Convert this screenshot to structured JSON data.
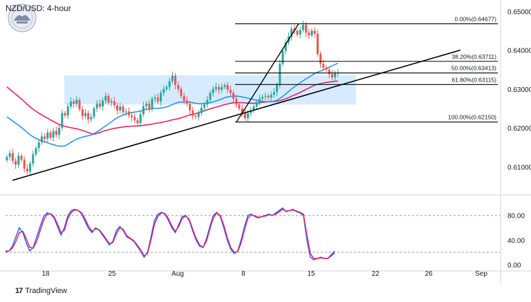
{
  "header": {
    "title": "NZD/USD: 4-hour"
  },
  "logo": {
    "name": "seal-logo-icon"
  },
  "footer": {
    "brand_icon": "17",
    "brand_name": "TradingView"
  },
  "colors": {
    "bull": "#26a69a",
    "bear": "#ef5350",
    "ma_slow": "#e91e63",
    "ma_fast": "#2196f3",
    "stoch_k": "#2962ff",
    "stoch_d": "#e91e63",
    "zone": "#bbdefb",
    "line": "#000000"
  },
  "chart_data": [
    {
      "type": "candlestick",
      "title": "NZD/USD: 4-hour",
      "ylim": [
        0.604,
        0.652
      ],
      "x_ticks": [
        "18",
        "25",
        "Aug",
        "8",
        "15",
        "22",
        "26",
        "Sep"
      ],
      "y_ticks": [
        "0.65000",
        "0.64000",
        "0.63000",
        "0.62000",
        "0.61000"
      ],
      "close_prices": [
        0.6125,
        0.6135,
        0.6115,
        0.6105,
        0.6128,
        0.6118,
        0.6095,
        0.6088,
        0.6108,
        0.6132,
        0.6148,
        0.6163,
        0.6178,
        0.6172,
        0.6188,
        0.6175,
        0.6192,
        0.6182,
        0.62,
        0.6238,
        0.6232,
        0.6255,
        0.6268,
        0.6262,
        0.6272,
        0.6248,
        0.623,
        0.6238,
        0.6222,
        0.6228,
        0.625,
        0.6262,
        0.6255,
        0.627,
        0.6282,
        0.6265,
        0.6268,
        0.6258,
        0.6245,
        0.6255,
        0.624,
        0.6242,
        0.6232,
        0.6228,
        0.622,
        0.6212,
        0.6235,
        0.6256,
        0.6262,
        0.6248,
        0.6275,
        0.6278,
        0.6268,
        0.629,
        0.63,
        0.6305,
        0.632,
        0.6334,
        0.631,
        0.63,
        0.6282,
        0.627,
        0.6262,
        0.6245,
        0.623,
        0.6228,
        0.6238,
        0.6252,
        0.626,
        0.6272,
        0.629,
        0.63,
        0.6305,
        0.6298,
        0.6305,
        0.631,
        0.6298,
        0.629,
        0.6275,
        0.626,
        0.625,
        0.6238,
        0.6225,
        0.6238,
        0.6245,
        0.6255,
        0.6265,
        0.6275,
        0.628,
        0.6282,
        0.6278,
        0.6285,
        0.6292,
        0.631,
        0.6365,
        0.6398,
        0.642,
        0.6435,
        0.6455,
        0.645,
        0.644,
        0.6452,
        0.6465,
        0.6445,
        0.6438,
        0.645,
        0.6442,
        0.639,
        0.6365,
        0.6355,
        0.635,
        0.6338,
        0.633,
        0.634,
        0.6342
      ],
      "fibonacci": [
        {
          "label": "0.00%(0.64677)",
          "level": 0.64677
        },
        {
          "label": "38.20%(0.63711)",
          "level": 0.63711
        },
        {
          "label": "50.00%(0.63413)",
          "level": 0.63413
        },
        {
          "label": "61.80%(0.63115)",
          "level": 0.63115
        },
        {
          "label": "100.00%(0.62150)",
          "level": 0.6215
        }
      ],
      "zone": {
        "x_start_candle": 29,
        "x_end_candle": 168,
        "low": 0.626,
        "high": 0.6335
      }
    },
    {
      "type": "line",
      "ylim": [
        -8,
        110
      ],
      "y_ticks": [
        "80.00",
        "40.00",
        "0.00"
      ],
      "levels": [
        80,
        20
      ],
      "series": [
        {
          "values": [
            20,
            22,
            30,
            45,
            60,
            52,
            35,
            22,
            28,
            45,
            62,
            78,
            84,
            82,
            76,
            62,
            48,
            60,
            80,
            88,
            90,
            88,
            82,
            70,
            58,
            52,
            60,
            56,
            48,
            40,
            32,
            38,
            55,
            62,
            55,
            45,
            42,
            38,
            30,
            22,
            12,
            20,
            45,
            72,
            82,
            85,
            82,
            72,
            60,
            52,
            65,
            78,
            80,
            72,
            55,
            40,
            30,
            28,
            42,
            62,
            80,
            85,
            78,
            60,
            40,
            25,
            18,
            22,
            40,
            62,
            80,
            82,
            78,
            76,
            78,
            80,
            82,
            80,
            84,
            88,
            92,
            86,
            88,
            90,
            86,
            84,
            80,
            40,
            12,
            8,
            10,
            12,
            10,
            10,
            16,
            22
          ]
        },
        {
          "values": [
            22,
            22,
            27,
            38,
            52,
            54,
            42,
            28,
            27,
            38,
            55,
            72,
            82,
            83,
            78,
            66,
            52,
            56,
            75,
            85,
            89,
            88,
            84,
            74,
            62,
            54,
            58,
            57,
            50,
            42,
            34,
            36,
            50,
            60,
            57,
            47,
            43,
            39,
            32,
            24,
            14,
            18,
            40,
            66,
            79,
            84,
            83,
            75,
            63,
            54,
            62,
            75,
            79,
            74,
            58,
            43,
            32,
            28,
            38,
            58,
            76,
            84,
            80,
            64,
            44,
            28,
            20,
            21,
            35,
            57,
            76,
            81,
            79,
            77,
            78,
            79,
            81,
            80,
            82,
            86,
            90,
            87,
            88,
            89,
            87,
            85,
            82,
            48,
            18,
            10,
            10,
            11,
            10,
            10,
            14,
            19
          ]
        }
      ]
    }
  ]
}
